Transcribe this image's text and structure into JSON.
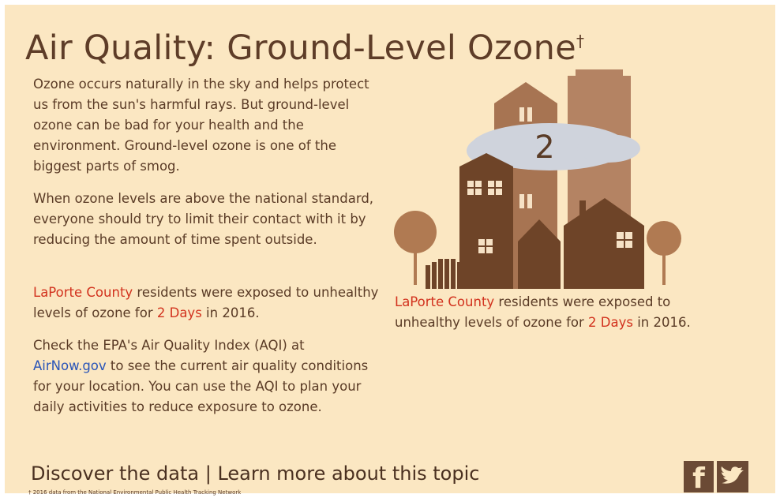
{
  "header": {
    "title": "Air Quality: Ground-Level Ozone",
    "title_mark": "†"
  },
  "paragraphs": [
    {
      "text": "Ozone occurs naturally in the sky and helps protect us from the sun's harmful rays. But ground-level ozone can be bad for your health and the environment. Ground-level ozone is one of the biggest parts of smog."
    },
    {
      "text": "When ozone levels are above the national standard, everyone should try to limit their contact with it by reducing the amount of time spent outside."
    },
    {
      "county": "LaPorte County",
      "before": " residents were exposed to unhealthy levels of ozone for ",
      "days": "2 Days",
      "after": " in 2016."
    },
    {
      "before": "Check the EPA's Air Quality Index (AQI) at ",
      "link": "AirNow.gov",
      "after": " to see the current air quality conditions for your location. You can use the AQI to plan your daily activities to reduce exposure to ozone."
    }
  ],
  "illustration": {
    "badge": "2",
    "caption": {
      "county": "LaPorte County",
      "before": " residents were exposed to unhealthy levels of ozone for ",
      "days": "2 Days",
      "after": " in 2016."
    }
  },
  "footer": {
    "link1": "Discover the data",
    "separator": "|",
    "link2": "Learn more about this topic",
    "footnote": "† 2016 data from the National Environmental Public Health Tracking Network",
    "facebook": "f"
  }
}
